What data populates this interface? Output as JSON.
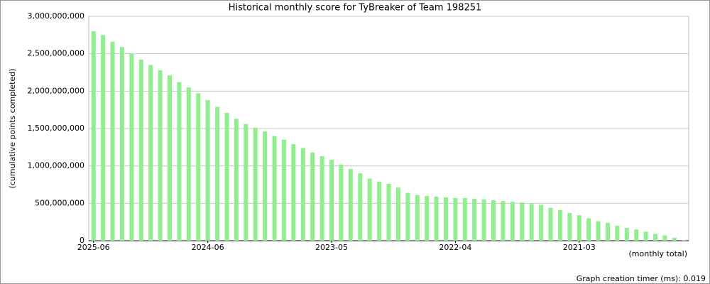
{
  "chart_data": {
    "type": "bar",
    "title": "Historical monthly score for TyBreaker of Team 198251",
    "y_label": "(cumulative points completed)",
    "x_note": "(monthly total)",
    "footer": "Graph creation timer (ms): 0.019",
    "color": "#90ee90",
    "grid": true,
    "categories": [
      "2025-06",
      null,
      null,
      null,
      null,
      null,
      null,
      null,
      null,
      null,
      null,
      null,
      "2024-06",
      null,
      null,
      null,
      null,
      null,
      null,
      null,
      null,
      null,
      null,
      null,
      null,
      "2023-05",
      null,
      null,
      null,
      null,
      null,
      null,
      null,
      null,
      null,
      null,
      null,
      null,
      "2022-04",
      null,
      null,
      null,
      null,
      null,
      null,
      null,
      null,
      null,
      null,
      null,
      null,
      "2021-03",
      null,
      null,
      null,
      null,
      null,
      null,
      null,
      null,
      null,
      null,
      null
    ],
    "values": [
      2800000000,
      2750000000,
      2660000000,
      2590000000,
      2500000000,
      2420000000,
      2350000000,
      2280000000,
      2210000000,
      2120000000,
      2050000000,
      1970000000,
      1880000000,
      1790000000,
      1710000000,
      1630000000,
      1560000000,
      1510000000,
      1460000000,
      1400000000,
      1350000000,
      1290000000,
      1240000000,
      1180000000,
      1130000000,
      1080000000,
      1020000000,
      960000000,
      900000000,
      830000000,
      790000000,
      760000000,
      710000000,
      640000000,
      610000000,
      600000000,
      590000000,
      580000000,
      570000000,
      570000000,
      560000000,
      550000000,
      540000000,
      530000000,
      520000000,
      510000000,
      490000000,
      480000000,
      440000000,
      410000000,
      370000000,
      340000000,
      300000000,
      260000000,
      240000000,
      200000000,
      170000000,
      150000000,
      120000000,
      90000000,
      70000000,
      40000000,
      10000000
    ],
    "ylim": [
      0,
      3000000000
    ],
    "yticks": [
      0,
      {
        "value": 500000000,
        "label": "500,000,000"
      },
      {
        "value": 1000000000,
        "label": "1,000,000,000"
      },
      {
        "value": 1500000000,
        "label": "1,500,000,000"
      },
      {
        "value": 2000000000,
        "label": "2,000,000,000"
      },
      {
        "value": 2500000000,
        "label": "2,500,000,000"
      },
      {
        "value": 3000000000,
        "label": "3,000,000,000"
      }
    ]
  }
}
